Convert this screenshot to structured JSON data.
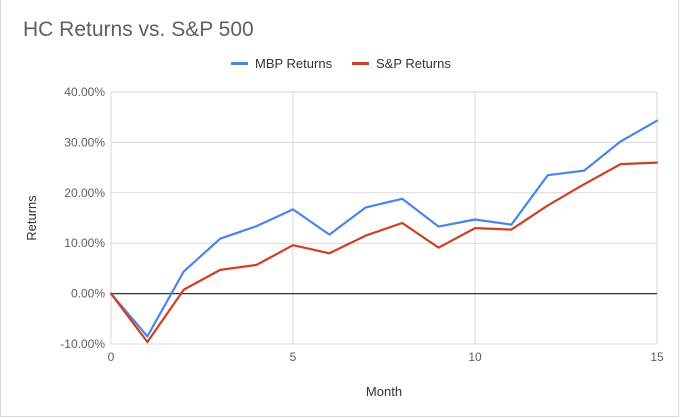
{
  "chart_data": {
    "type": "line",
    "title": "HC Returns vs. S&P 500",
    "xlabel": "Month",
    "ylabel": "Returns",
    "xlim": [
      0,
      15
    ],
    "ylim": [
      -10,
      40
    ],
    "x_ticks": [
      0,
      5,
      10,
      15
    ],
    "y_ticks": [
      -10,
      0,
      10,
      20,
      30,
      40
    ],
    "y_tick_labels": [
      "-10.00%",
      "0.00%",
      "10.00%",
      "20.00%",
      "30.00%",
      "40.00%"
    ],
    "legend_position": "top",
    "grid": true,
    "x": [
      0,
      1,
      2,
      3,
      4,
      5,
      6,
      7,
      8,
      9,
      10,
      11,
      12,
      13,
      14,
      15
    ],
    "series": [
      {
        "name": "MBP Returns",
        "color": "#4a86e8",
        "values": [
          0,
          -8.5,
          4.4,
          10.9,
          13.4,
          16.7,
          11.7,
          17.1,
          18.8,
          13.3,
          14.7,
          13.7,
          23.5,
          24.4,
          30.2,
          34.3
        ]
      },
      {
        "name": "S&P Returns",
        "color": "#cc4125",
        "values": [
          0,
          -9.6,
          0.8,
          4.7,
          5.7,
          9.6,
          8.0,
          11.5,
          14.0,
          9.1,
          13.0,
          12.7,
          17.5,
          21.7,
          25.7,
          26.0
        ]
      }
    ]
  }
}
